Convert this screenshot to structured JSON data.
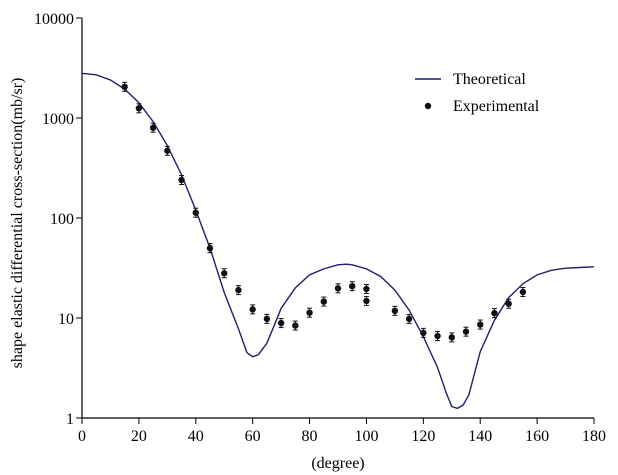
{
  "chart_data": {
    "type": "line",
    "xlabel": "(degree)",
    "ylabel": "shape elastic differential cross-section(mb/sr)",
    "xlim": [
      0,
      180
    ],
    "ylim": [
      1,
      10000
    ],
    "yscale": "log",
    "grid": false,
    "legend_position": "top-right",
    "x_ticks": [
      "0",
      "20",
      "40",
      "60",
      "80",
      "100",
      "120",
      "140",
      "160",
      "180"
    ],
    "y_ticks": [
      "1",
      "10",
      "100",
      "1000",
      "10000"
    ],
    "colors": {
      "theoretical": "#1f1f6e",
      "experimental": "#111111"
    },
    "series": [
      {
        "name": "Theoretical",
        "style": "line",
        "x": [
          0,
          5,
          10,
          15,
          20,
          25,
          30,
          35,
          40,
          45,
          50,
          55,
          58,
          60,
          62,
          63,
          65,
          68,
          70,
          75,
          80,
          85,
          90,
          93,
          95,
          100,
          105,
          110,
          115,
          120,
          125,
          128,
          130,
          132,
          134,
          136,
          138,
          140,
          145,
          150,
          155,
          160,
          165,
          170,
          175,
          180
        ],
        "y": [
          2800,
          2700,
          2400,
          1950,
          1420,
          920,
          530,
          270,
          120,
          50,
          18,
          7.8,
          4.5,
          4.1,
          4.3,
          4.7,
          5.6,
          9,
          12.5,
          20,
          27,
          31,
          34,
          34.5,
          34,
          31,
          26,
          19,
          12,
          6.5,
          3.2,
          1.8,
          1.3,
          1.25,
          1.35,
          1.7,
          2.8,
          4.6,
          9.5,
          16,
          22,
          27,
          30,
          31.5,
          32,
          32.5
        ]
      },
      {
        "name": "Experimental",
        "style": "points",
        "x": [
          15,
          20,
          25,
          30,
          35,
          40,
          45,
          50,
          55,
          60,
          65,
          70,
          75,
          80,
          85,
          90,
          95,
          100,
          100,
          110,
          115,
          120,
          125,
          130,
          135,
          140,
          145,
          150,
          155
        ],
        "y": [
          2050,
          1250,
          800,
          470,
          240,
          113,
          50,
          28,
          19,
          12.2,
          9.8,
          8.9,
          8.4,
          11.3,
          14.6,
          19.8,
          20.8,
          19.5,
          14.8,
          11.8,
          9.8,
          7.1,
          6.6,
          6.4,
          7.3,
          8.6,
          11.2,
          13.9,
          18.2
        ]
      }
    ]
  }
}
